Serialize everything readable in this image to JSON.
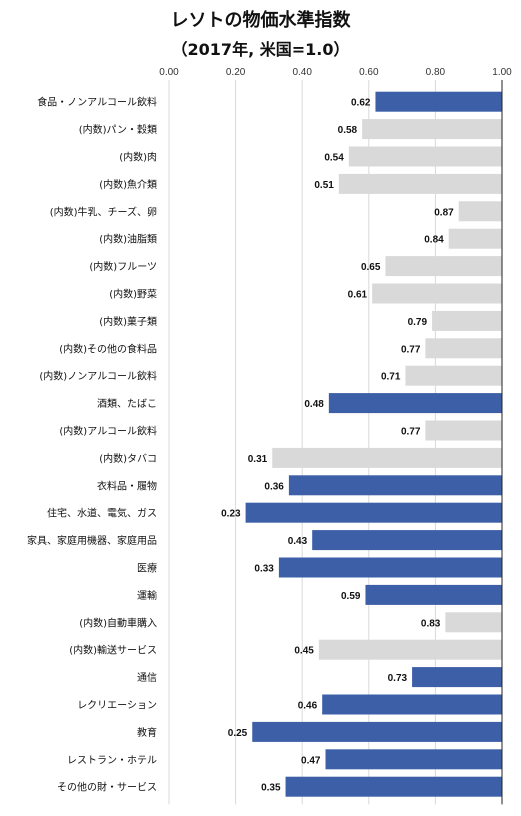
{
  "chart_data": {
    "type": "bar",
    "orientation": "horizontal",
    "title": "レソトの物価水準指数",
    "subtitle": "（2017年, 米国=1.0）",
    "xlim": [
      0,
      1
    ],
    "ticks": [
      "0.00",
      "0.20",
      "0.40",
      "0.60",
      "0.80",
      "1.00"
    ],
    "grid": true,
    "colors": {
      "main": "#3c5fa8",
      "sub": "#d9d9d9"
    },
    "categories": [
      "食品・ノンアルコール飲料",
      "(内数)パン・穀類",
      "(内数)肉",
      "(内数)魚介類",
      "(内数)牛乳、チーズ、卵",
      "(内数)油脂類",
      "(内数)フルーツ",
      "(内数)野菜",
      "(内数)菓子類",
      "(内数)その他の食料品",
      "(内数)ノンアルコール飲料",
      "酒類、たばこ",
      "(内数)アルコール飲料",
      "(内数)タバコ",
      "衣料品・履物",
      "住宅、水道、電気、ガス",
      "家具、家庭用機器、家庭用品",
      "医療",
      "運輸",
      "(内数)自動車購入",
      "(内数)輸送サービス",
      "通信",
      "レクリエーション",
      "教育",
      "レストラン・ホテル",
      "その他の財・サービス"
    ],
    "values": [
      0.62,
      0.58,
      0.54,
      0.51,
      0.87,
      0.84,
      0.65,
      0.61,
      0.79,
      0.77,
      0.71,
      0.48,
      0.77,
      0.31,
      0.36,
      0.23,
      0.43,
      0.33,
      0.59,
      0.83,
      0.45,
      0.73,
      0.46,
      0.25,
      0.47,
      0.35
    ],
    "labels": [
      "0.62",
      "0.58",
      "0.54",
      "0.51",
      "0.87",
      "0.84",
      "0.65",
      "0.61",
      "0.79",
      "0.77",
      "0.71",
      "0.48",
      "0.77",
      "0.31",
      "0.36",
      "0.23",
      "0.43",
      "0.33",
      "0.59",
      "0.83",
      "0.45",
      "0.73",
      "0.46",
      "0.25",
      "0.47",
      "0.35"
    ],
    "is_sub": [
      false,
      true,
      true,
      true,
      true,
      true,
      true,
      true,
      true,
      true,
      true,
      false,
      true,
      true,
      false,
      false,
      false,
      false,
      false,
      true,
      true,
      false,
      false,
      false,
      false,
      false
    ]
  }
}
